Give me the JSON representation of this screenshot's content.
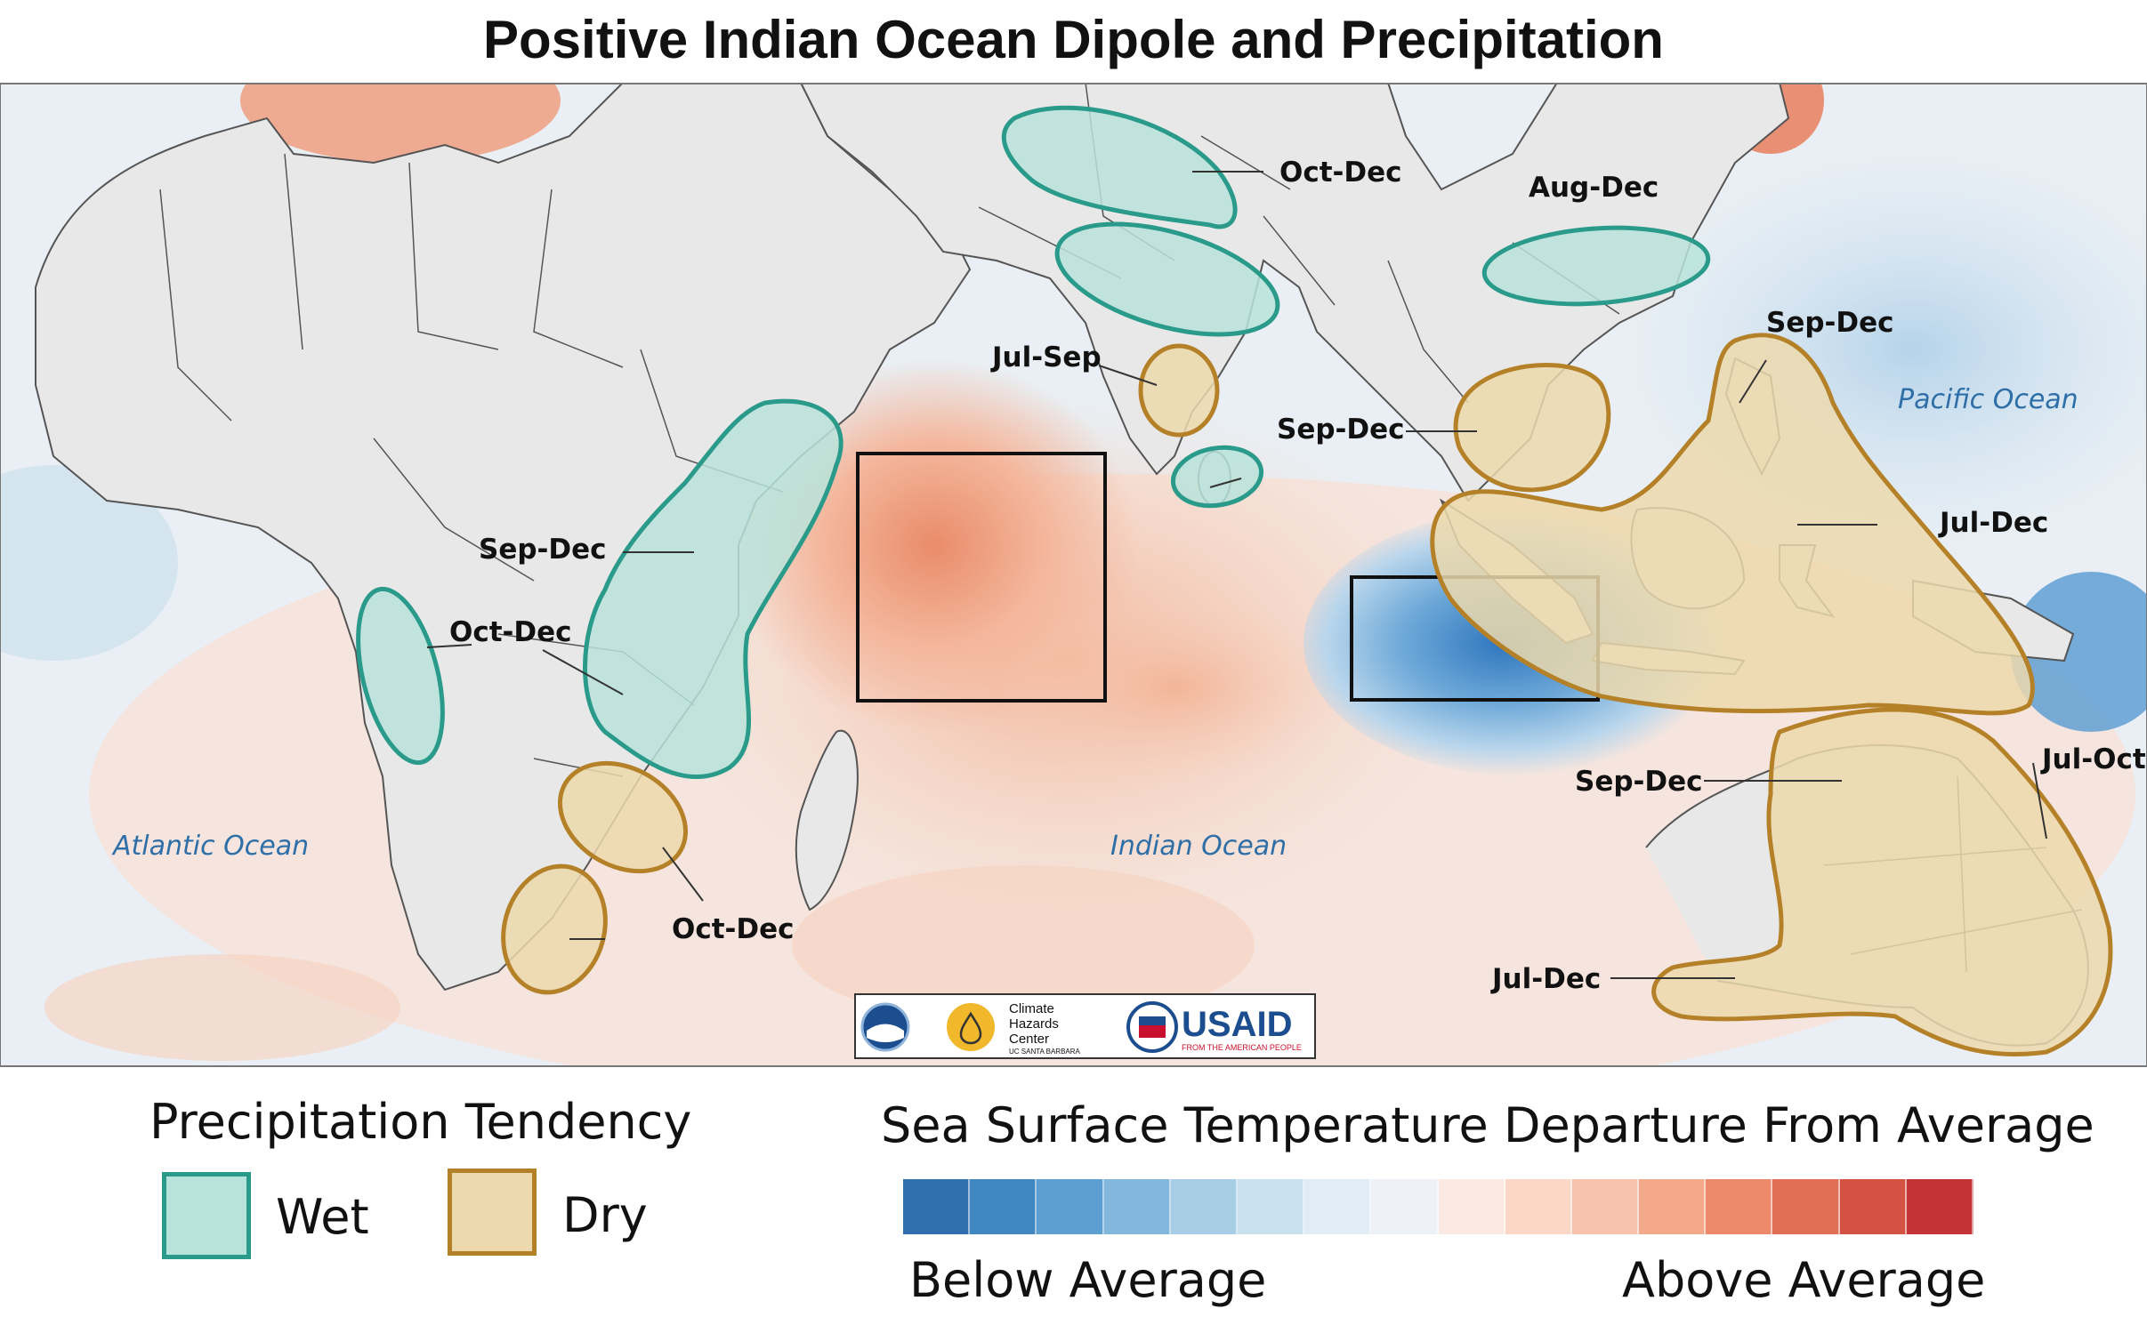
{
  "title": "Positive Indian Ocean Dipole and Precipitation",
  "colors": {
    "wet_fill": "#b8e3da",
    "wet_stroke": "#2a9a8a",
    "dry_fill": "#ecd9ad",
    "dry_stroke": "#b58128",
    "land": "#e8e8e8",
    "ocean_base": "#e6eef4",
    "warm": "#f2b59a",
    "cool": "#4d94cb"
  },
  "map": {
    "regions": [
      {
        "id": "india-north",
        "type": "wet",
        "label": "Oct-Dec"
      },
      {
        "id": "india-central",
        "type": "wet",
        "label": ""
      },
      {
        "id": "south-india",
        "type": "dry",
        "label": "Jul-Sep"
      },
      {
        "id": "sri-lanka",
        "type": "wet",
        "label": "Sep-Dec"
      },
      {
        "id": "china",
        "type": "wet",
        "label": "Aug-Dec"
      },
      {
        "id": "indochina",
        "type": "dry",
        "label": "Sep-Dec"
      },
      {
        "id": "philippines",
        "type": "dry",
        "label": "Sep-Dec"
      },
      {
        "id": "indonesia",
        "type": "dry",
        "label": "Jul-Dec"
      },
      {
        "id": "australia-nw",
        "type": "dry",
        "label": "Sep-Dec"
      },
      {
        "id": "australia-east",
        "type": "dry",
        "label": "Jul-Oct"
      },
      {
        "id": "australia-south",
        "type": "dry",
        "label": "Jul-Dec"
      },
      {
        "id": "east-africa",
        "type": "wet",
        "label": "Sep-Dec"
      },
      {
        "id": "central-africa",
        "type": "wet",
        "label": "Oct-Dec"
      },
      {
        "id": "southeast-africa",
        "type": "dry",
        "label": "Oct-Dec"
      }
    ],
    "oceans": [
      "Atlantic Ocean",
      "Indian Ocean",
      "Pacific Ocean"
    ],
    "logos": {
      "climate_hazards": [
        "Climate",
        "Hazards",
        "Center",
        "UC SANTA BARBARA"
      ],
      "usaid": "USAID",
      "usaid_tagline": "FROM THE AMERICAN PEOPLE"
    }
  },
  "legend": {
    "precip_title": "Precipitation Tendency",
    "wet_label": "Wet",
    "dry_label": "Dry",
    "sst_title": "Sea Surface Temperature Departure From Average",
    "below": "Below Average",
    "above": "Above Average",
    "scale_colors": [
      "#2f6fae",
      "#4187c1",
      "#5d9fd0",
      "#82b8dc",
      "#a7cee5",
      "#c9e0ee",
      "#e1ecf4",
      "#eef2f6",
      "#fbeae3",
      "#fad7c7",
      "#f7c2ab",
      "#f3a98a",
      "#ec8a6b",
      "#e16f56",
      "#d45241",
      "#c23436"
    ]
  }
}
